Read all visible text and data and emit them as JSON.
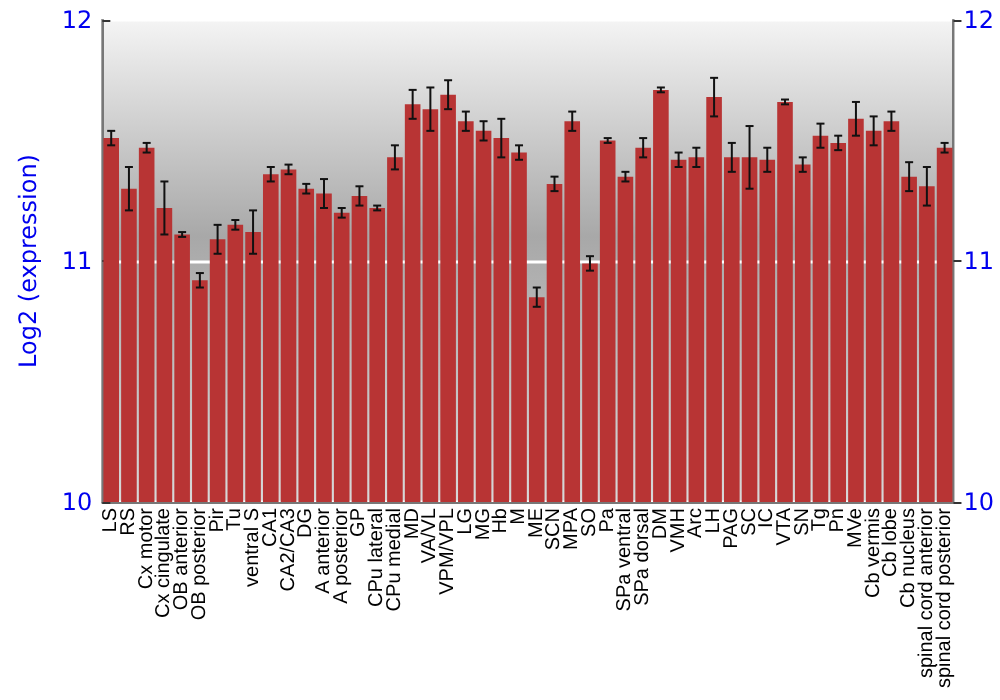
{
  "chart_data": {
    "type": "bar",
    "ylabel": "Log2 (expression)",
    "categories": [
      "LS",
      "RS",
      "Cx motor",
      "Cx cingulate",
      "OB anterior",
      "OB posterior",
      "Pir",
      "Tu",
      "ventral S",
      "CA1",
      "CA2/CA3",
      "DG",
      "A anterior",
      "A posterior",
      "GP",
      "CPu lateral",
      "CPu medial",
      "MD",
      "VA/VL",
      "VPM/VPL",
      "LG",
      "MG",
      "Hb",
      "M",
      "ME",
      "SCN",
      "MPA",
      "SO",
      "Pa",
      "SPa ventral",
      "SPa dorsal",
      "DM",
      "VMH",
      "Arc",
      "LH",
      "PAG",
      "SC",
      "IC",
      "VTA",
      "SN",
      "Tg",
      "Pn",
      "MVe",
      "Cb vermis",
      "Cb lobe",
      "Cb nucleus",
      "spinal cord anterior",
      "spinal cord posterior"
    ],
    "values": [
      11.51,
      11.3,
      11.47,
      11.22,
      11.11,
      10.92,
      11.09,
      11.15,
      11.12,
      11.36,
      11.38,
      11.3,
      11.28,
      11.2,
      11.27,
      11.22,
      11.43,
      11.65,
      11.63,
      11.69,
      11.58,
      11.54,
      11.51,
      11.45,
      10.85,
      11.32,
      11.58,
      10.99,
      11.5,
      11.35,
      11.47,
      11.71,
      11.42,
      11.43,
      11.68,
      11.43,
      11.43,
      11.42,
      11.66,
      11.4,
      11.52,
      11.49,
      11.59,
      11.54,
      11.58,
      11.35,
      11.31,
      11.47
    ],
    "errors": [
      0.03,
      0.09,
      0.02,
      0.11,
      0.01,
      0.03,
      0.06,
      0.02,
      0.09,
      0.03,
      0.02,
      0.02,
      0.06,
      0.02,
      0.04,
      0.01,
      0.05,
      0.06,
      0.09,
      0.06,
      0.04,
      0.04,
      0.08,
      0.03,
      0.04,
      0.03,
      0.04,
      0.03,
      0.01,
      0.02,
      0.04,
      0.01,
      0.03,
      0.04,
      0.08,
      0.06,
      0.13,
      0.05,
      0.01,
      0.03,
      0.05,
      0.03,
      0.07,
      0.06,
      0.04,
      0.06,
      0.08,
      0.02
    ],
    "color": "#b83434",
    "ylim": [
      10,
      12
    ],
    "yticks": [
      10,
      11,
      12
    ],
    "y2lim": [
      10,
      12
    ],
    "y2ticks": [
      10,
      11,
      12
    ],
    "grid": "y"
  }
}
